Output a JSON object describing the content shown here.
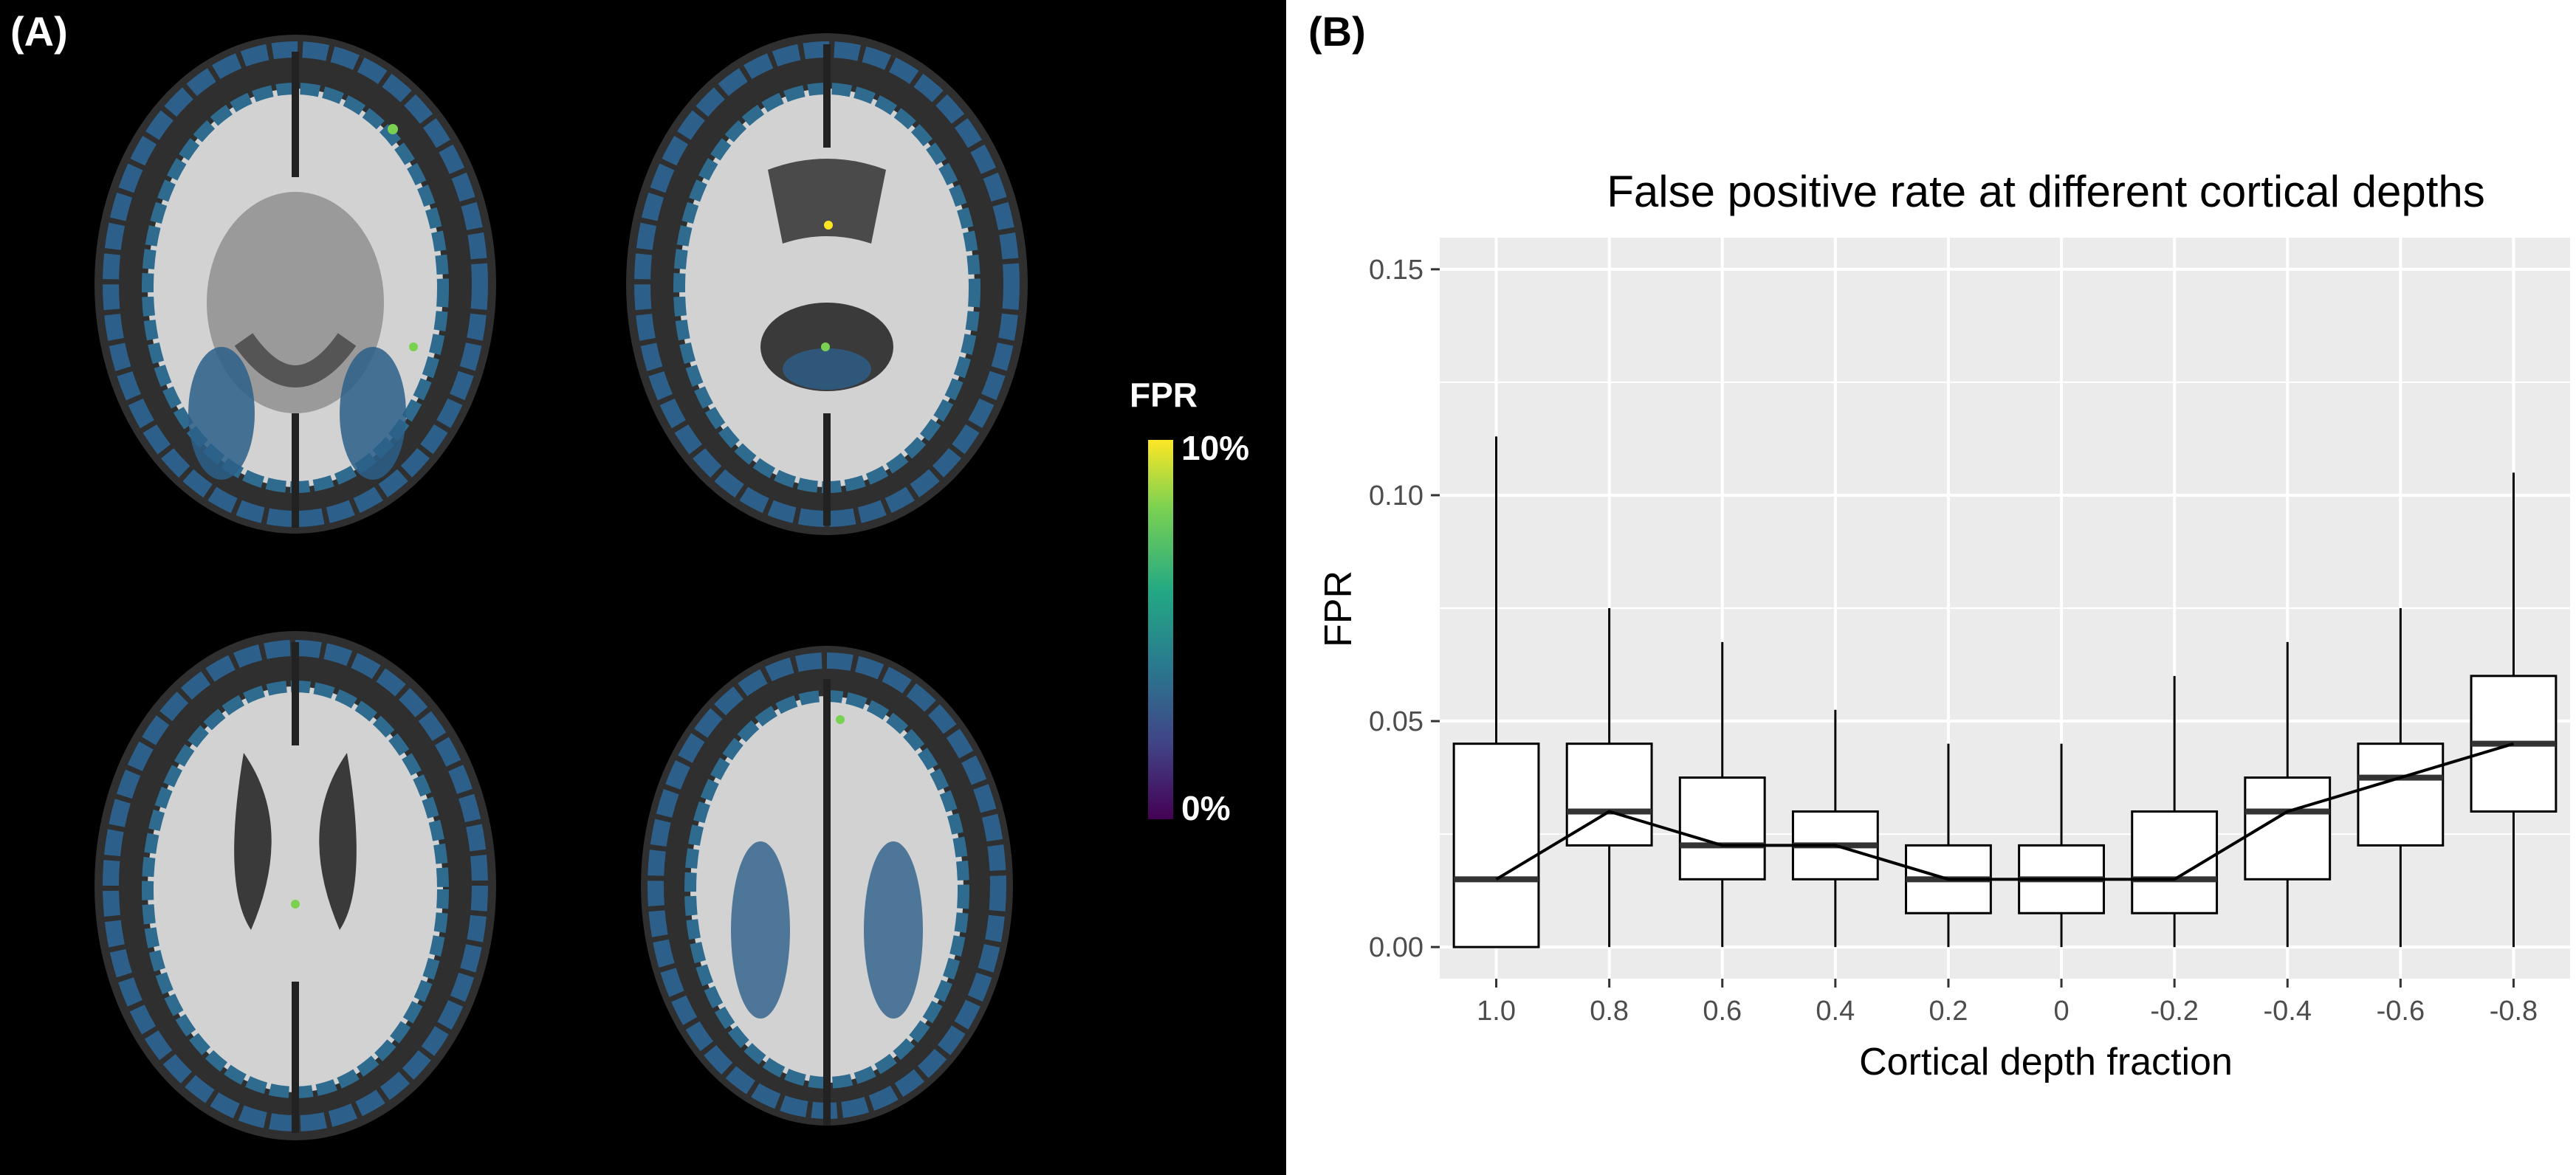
{
  "panel_a": {
    "label": "(A)",
    "colorbar": {
      "title": "FPR",
      "max_label": "10%",
      "min_label": "0%"
    },
    "colors": {
      "background": "#000000",
      "brain": "#c8c8c8",
      "cortex": "#2c5f8a",
      "hotspot": "#7ad151"
    }
  },
  "panel_b": {
    "label": "(B)"
  },
  "chart_data": {
    "type": "boxplot",
    "title": "False positive rate at different cortical depths",
    "xlabel": "Cortical depth fraction",
    "ylabel": "FPR",
    "ylim": [
      -0.007,
      0.157
    ],
    "yticks": [
      0.0,
      0.05,
      0.1,
      0.15
    ],
    "ytick_labels": [
      "0.00",
      "0.05",
      "0.10",
      "0.15"
    ],
    "categories": [
      "1.0",
      "0.8",
      "0.6",
      "0.4",
      "0.2",
      "0",
      "-0.2",
      "-0.4",
      "-0.6",
      "-0.8"
    ],
    "boxes": [
      {
        "category": "1.0",
        "min": 0.0,
        "q1": 0.0,
        "median": 0.015,
        "q3": 0.045,
        "max": 0.113
      },
      {
        "category": "0.8",
        "min": 0.0,
        "q1": 0.0225,
        "median": 0.03,
        "q3": 0.045,
        "max": 0.075
      },
      {
        "category": "0.6",
        "min": 0.0,
        "q1": 0.015,
        "median": 0.0225,
        "q3": 0.0375,
        "max": 0.0675
      },
      {
        "category": "0.4",
        "min": 0.0,
        "q1": 0.015,
        "median": 0.0225,
        "q3": 0.03,
        "max": 0.0525
      },
      {
        "category": "0.2",
        "min": 0.0,
        "q1": 0.0075,
        "median": 0.015,
        "q3": 0.0225,
        "max": 0.045
      },
      {
        "category": "0",
        "min": 0.0,
        "q1": 0.0075,
        "median": 0.015,
        "q3": 0.0225,
        "max": 0.045
      },
      {
        "category": "-0.2",
        "min": 0.0,
        "q1": 0.0075,
        "median": 0.015,
        "q3": 0.03,
        "max": 0.06
      },
      {
        "category": "-0.4",
        "min": 0.0,
        "q1": 0.015,
        "median": 0.03,
        "q3": 0.0375,
        "max": 0.0675
      },
      {
        "category": "-0.6",
        "min": 0.0,
        "q1": 0.0225,
        "median": 0.0375,
        "q3": 0.045,
        "max": 0.075
      },
      {
        "category": "-0.8",
        "min": 0.0,
        "q1": 0.03,
        "median": 0.045,
        "q3": 0.06,
        "max": 0.105
      }
    ],
    "median_line": true,
    "grid": true,
    "colors": {
      "panel_background": "#ebebeb",
      "grid": "#ffffff",
      "box_fill": "#ffffff",
      "stroke": "#000000"
    }
  }
}
